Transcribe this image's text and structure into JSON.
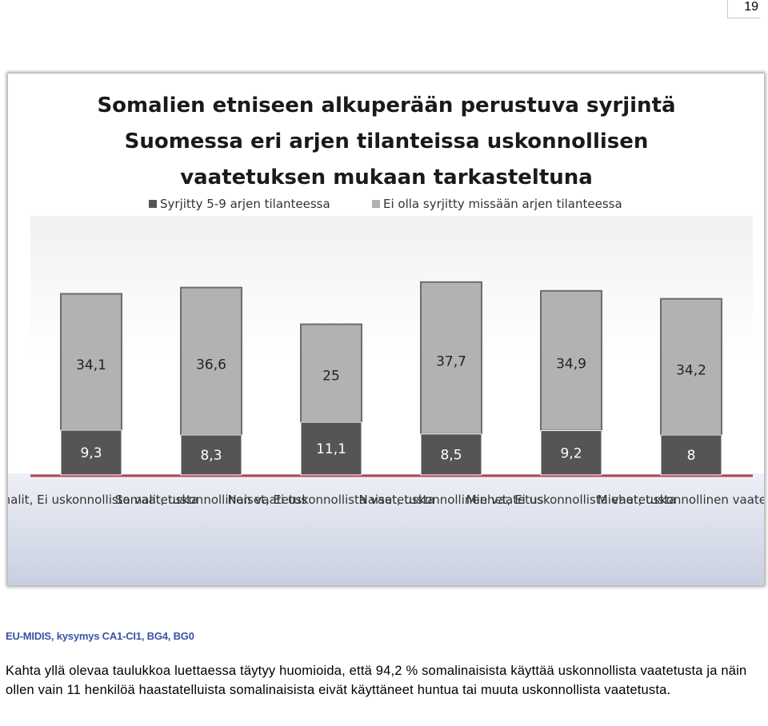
{
  "page": {
    "number": "19"
  },
  "chart_data": {
    "type": "bar",
    "stacked": true,
    "title_lines": [
      "Somalien etniseen alkuperään perustuva syrjintä",
      "Suomessa eri arjen tilanteissa uskonnollisen",
      "vaatetuksen mukaan tarkasteltuna"
    ],
    "categories": [
      "Somalit, Ei uskonnollista vaatetusta",
      "Somalit, uskonnollinen vaatetus",
      "Naiset, Ei uskonnollista vaatetusta",
      "Naiset, uskonnollinen vaatetus",
      "Miehet, Ei uskonnollista vaatetusta",
      "Miehet, uskonnollinen vaatetus"
    ],
    "series": [
      {
        "name": "Syrjitty 5-9 arjen tilanteessa",
        "values": [
          9.3,
          8.3,
          11.1,
          8.5,
          9.2,
          8
        ],
        "labels": [
          "9,3",
          "8,3",
          "11,1",
          "8,5",
          "9,2",
          "8"
        ],
        "color": "#555555"
      },
      {
        "name": "Ei olla syrjitty missään arjen tilanteessa",
        "values": [
          34.1,
          36.6,
          25,
          37.7,
          34.9,
          34.2
        ],
        "labels": [
          "34,1",
          "36,6",
          "25",
          "37,7",
          "34,9",
          "34,2"
        ],
        "color": "#b2b2b2"
      }
    ],
    "ylim": [
      0,
      50
    ],
    "legend_position": "top",
    "grid": false
  },
  "source": "EU-MIDIS, kysymys CA1-CI1, BG4, BG0",
  "body_text": "Kahta yllä olevaa taulukkoa luettaessa täytyy huomioida, että 94,2 % somalinaisista käyttää uskonnollista vaatetusta ja näin ollen vain 11 henkilöä haastatelluista somalinaisista eivät käyttäneet huntua tai muuta uskonnollista vaatetusta."
}
